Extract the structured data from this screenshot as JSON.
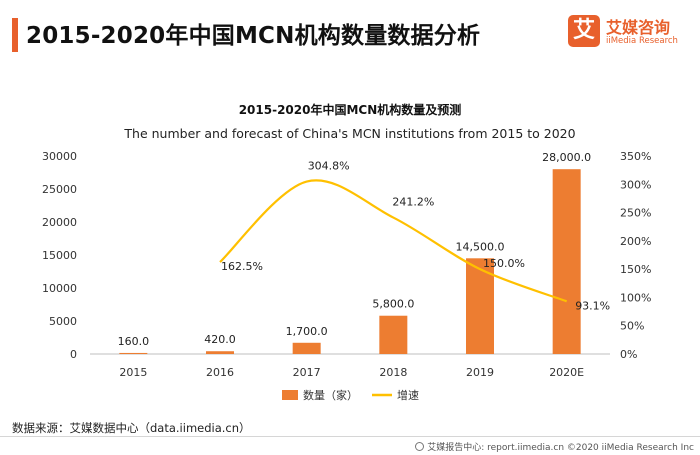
{
  "header": {
    "title": "2015-2020年中国MCN机构数量数据分析"
  },
  "logo": {
    "mark": "艾",
    "name_cn": "艾媒咨询",
    "name_en": "iiMedia Research"
  },
  "colors": {
    "accent": "#e8602c",
    "bar": "#ed7d31",
    "line": "#ffc000"
  },
  "chart_data": {
    "type": "bar",
    "title": "2015-2020年中国MCN机构数量及预测",
    "subtitle": "The number and forecast of China's MCN institutions from 2015 to 2020",
    "categories": [
      "2015",
      "2016",
      "2017",
      "2018",
      "2019",
      "2020E"
    ],
    "series": [
      {
        "name": "数量（家）",
        "type": "bar",
        "axis": "left",
        "values": [
          160,
          420,
          1700,
          5800,
          14500,
          28000
        ],
        "labels": [
          "160.0",
          "420.0",
          "1,700.0",
          "5,800.0",
          "14,500.0",
          "28,000.0"
        ]
      },
      {
        "name": "增速",
        "type": "line",
        "axis": "right",
        "values": [
          null,
          162.5,
          304.8,
          241.2,
          150.0,
          93.1
        ],
        "labels": [
          "",
          "162.5%",
          "304.8%",
          "241.2%",
          "150.0%",
          "93.1%"
        ]
      }
    ],
    "y_left": {
      "min": 0,
      "max": 30000,
      "ticks": [
        "0",
        "5000",
        "10000",
        "15000",
        "20000",
        "25000",
        "30000"
      ]
    },
    "y_right": {
      "min": 0,
      "max": 350,
      "ticks": [
        "0%",
        "50%",
        "100%",
        "150%",
        "200%",
        "250%",
        "300%",
        "350%"
      ]
    },
    "grid": false,
    "legend_position": "bottom"
  },
  "source": {
    "text": "数据来源：艾媒数据中心（data.iimedia.cn）"
  },
  "footer": {
    "text": "艾媒报告中心: report.iimedia.cn  ©2020  iiMedia Research  Inc"
  }
}
